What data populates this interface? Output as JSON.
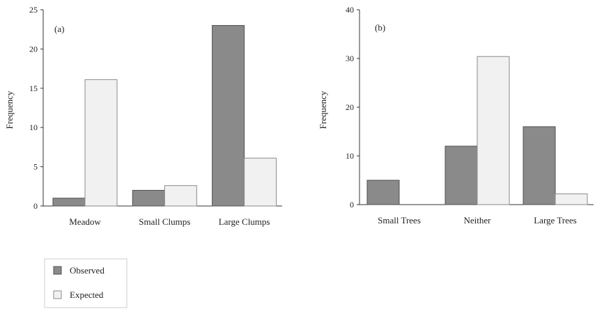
{
  "colors": {
    "observed_fill": "#8a8a8a",
    "observed_stroke": "#505050",
    "expected_fill": "#f1f1f1",
    "expected_stroke": "#8a8a8a",
    "axis": "#333333"
  },
  "legend": {
    "placement": "bottom-left",
    "items": [
      {
        "label": "Observed",
        "series": 0
      },
      {
        "label": "Expected",
        "series": 1
      }
    ]
  },
  "chart_data": [
    {
      "type": "bar",
      "panel_label": "(a)",
      "ylabel": "Frequency",
      "xlabel": "",
      "ylim": [
        0,
        25
      ],
      "yticks": [
        0,
        5,
        10,
        15,
        20,
        25
      ],
      "grid": false,
      "categories": [
        "Meadow",
        "Small Clumps",
        "Large Clumps"
      ],
      "series": [
        {
          "name": "Observed",
          "values": [
            1,
            2,
            23
          ]
        },
        {
          "name": "Expected",
          "values": [
            16.1,
            2.6,
            6.1
          ]
        }
      ]
    },
    {
      "type": "bar",
      "panel_label": "(b)",
      "ylabel": "Frequency",
      "xlabel": "",
      "ylim": [
        0,
        40
      ],
      "yticks": [
        0,
        10,
        20,
        30,
        40
      ],
      "grid": false,
      "categories": [
        "Small Trees",
        "Neither",
        "Large Trees"
      ],
      "series": [
        {
          "name": "Observed",
          "values": [
            5,
            12,
            16
          ]
        },
        {
          "name": "Expected",
          "values": [
            0,
            30.4,
            2.2
          ]
        }
      ]
    }
  ]
}
